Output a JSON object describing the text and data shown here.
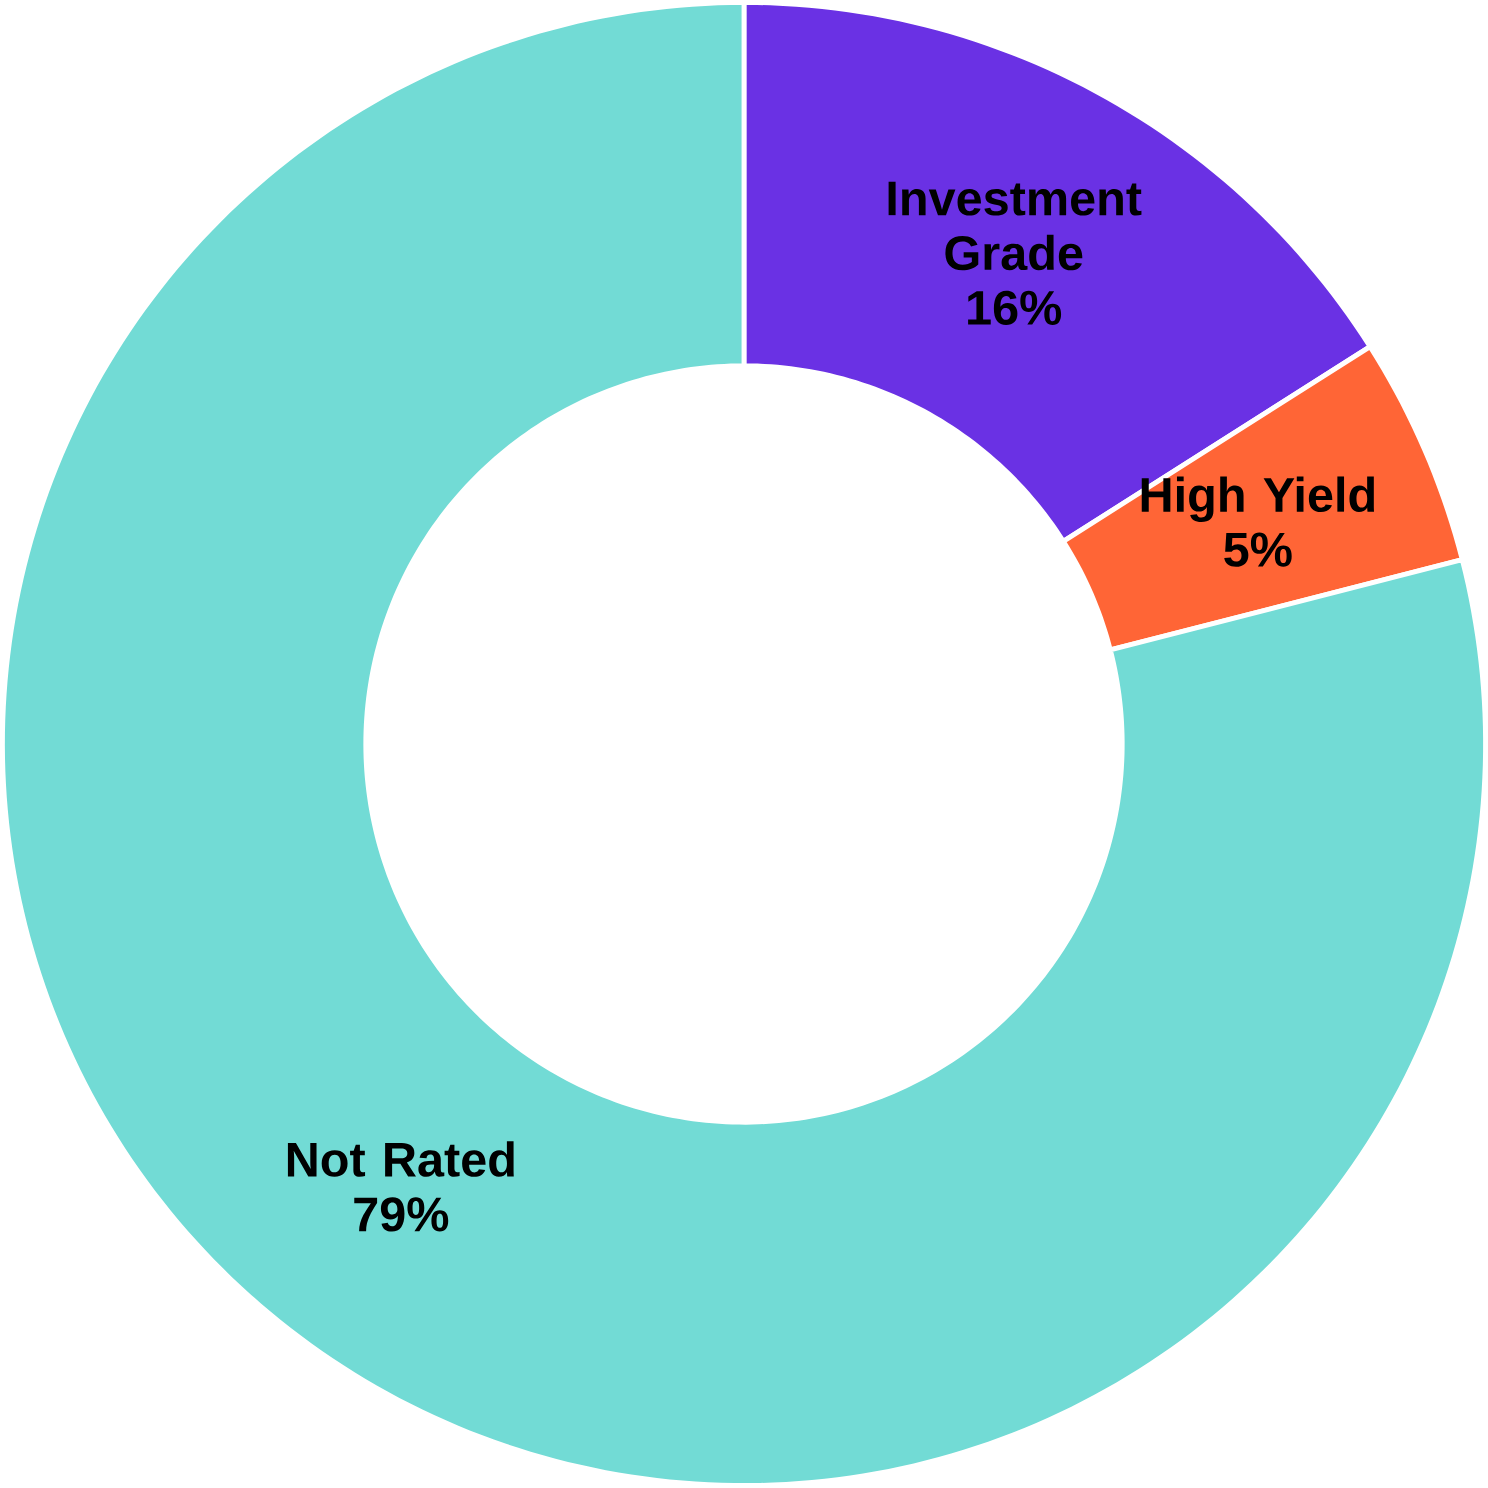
{
  "chart_data": {
    "type": "donut",
    "categories": [
      "Investment Grade",
      "High Yield",
      "Not Rated"
    ],
    "values": [
      16,
      5,
      79
    ],
    "value_labels": [
      "16%",
      "5%",
      "79%"
    ],
    "colors": [
      "#6a31e4",
      "#ff6536",
      "#72dbd5"
    ]
  }
}
